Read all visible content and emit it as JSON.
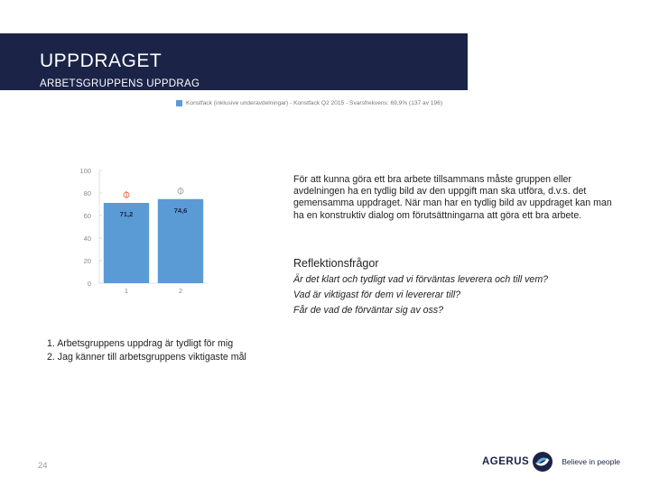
{
  "header": {
    "title": "UPPDRAGET",
    "subtitle": "ARBETSGRUPPENS UPPDRAG"
  },
  "chart_data": {
    "type": "bar",
    "categories": [
      "1",
      "2"
    ],
    "series": [
      {
        "name": "Konstfack (inklusive underavdelningar) - Konstfack Q2 2015 - Svarsfrekvens: 69,9% (137 av 196)",
        "values": [
          71.2,
          74.6
        ]
      }
    ],
    "data_labels": [
      "71,2",
      "74,6"
    ],
    "ylim": [
      0,
      100
    ],
    "yticks": [
      0,
      20,
      40,
      60,
      80,
      100
    ],
    "bar_color": "#5b9bd5",
    "marker_colors": [
      "#e05a2b",
      "#999999"
    ],
    "legend": "top"
  },
  "content": {
    "body": "För att kunna göra ett bra arbete tillsammans måste gruppen eller avdelningen ha en tydlig bild av den uppgift man ska utföra, d.v.s. det gemensamma uppdraget. När man har en tydlig bild av uppdraget kan man ha en konstruktiv dialog om förutsättningarna att göra ett bra arbete.",
    "section_title": "Reflektionsfrågor",
    "questions": [
      "Är det klart och tydligt vad vi förväntas leverera och till vem?",
      "Vad är viktigast för dem vi levererar till?",
      "Får de vad de förväntar sig av oss?"
    ]
  },
  "notes": [
    "1. Arbetsgruppens uppdrag är tydligt för mig",
    "2. Jag känner till arbetsgruppens viktigaste mål"
  ],
  "footer": {
    "page_number": "24",
    "logo_text": "AGERUS",
    "tagline": "Believe in people"
  },
  "colors": {
    "header_bg": "#1b2447",
    "bar": "#5b9bd5"
  }
}
